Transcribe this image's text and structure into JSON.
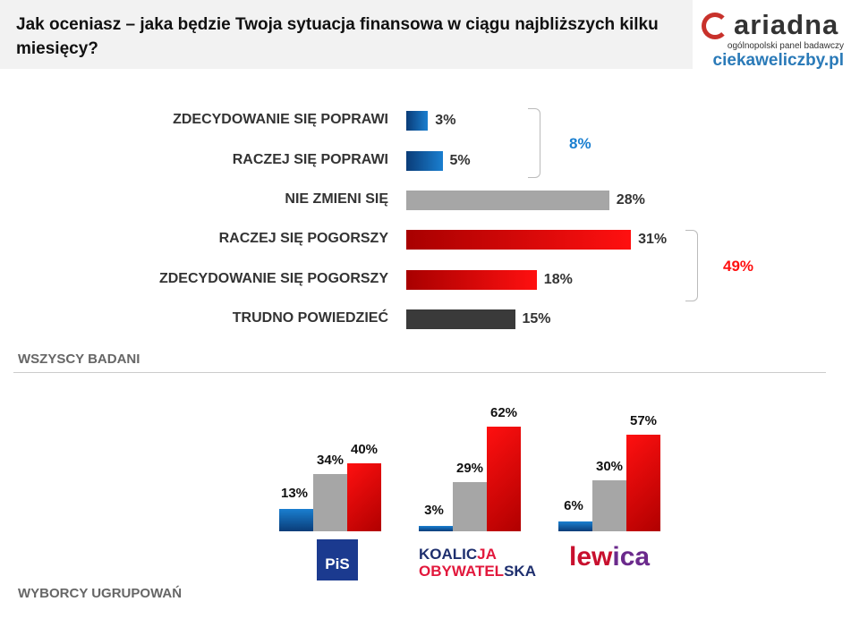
{
  "header": {
    "title": "Jak oceniasz – jaka będzie Twoja sytuacja finansowa w ciągu najbliższych kilku miesięcy?"
  },
  "logo": {
    "name": "ariadna",
    "tagline": "ogólnopolski panel badawczy",
    "site": "ciekaweliczby.pl"
  },
  "colors": {
    "poprawi": "#1a7fd0",
    "nie_zmieni": "#a6a6a6",
    "pogorszy": "#ff1010",
    "trudno": "#3a3a3a"
  },
  "chart_data": [
    {
      "type": "bar",
      "orientation": "horizontal",
      "section": "WSZYSCY BADANI",
      "categories": [
        "ZDECYDOWANIE SIĘ POPRAWI",
        "RACZEJ SIĘ POPRAWI",
        "NIE ZMIENI SIĘ",
        "RACZEJ SIĘ POGORSZY",
        "ZDECYDOWANIE SIĘ POGORSZY",
        "TRUDNO POWIEDZIEĆ"
      ],
      "values": [
        3,
        5,
        28,
        31,
        18,
        15
      ],
      "labels": [
        "3%",
        "5%",
        "28%",
        "31%",
        "18%",
        "15%"
      ],
      "groups": [
        {
          "label": "8%",
          "color": "#1a7fd0"
        },
        {
          "label": "49%",
          "color": "#ff1010"
        }
      ]
    },
    {
      "type": "bar",
      "orientation": "vertical",
      "section": "WYBORCY  UGRUPOWAŃ",
      "categories": [
        "PiS",
        "KOALICJA OBYWATELSKA",
        "lewica"
      ],
      "series": [
        {
          "values": [
            13,
            3,
            6
          ],
          "labels": [
            "13%",
            "3%",
            "6%"
          ]
        },
        {
          "values": [
            34,
            29,
            30
          ],
          "labels": [
            "34%",
            "29%",
            "30%"
          ]
        },
        {
          "values": [
            40,
            62,
            57
          ],
          "labels": [
            "40%",
            "62%",
            "57%"
          ]
        }
      ]
    }
  ],
  "parties": {
    "pis": "PiS",
    "ko_line1a": "KOALIC",
    "ko_line1b": "JA",
    "ko_line2a": "OBYWATEL",
    "ko_line2b": "SKA",
    "lewica_a": "lew",
    "lewica_b": "ica"
  }
}
